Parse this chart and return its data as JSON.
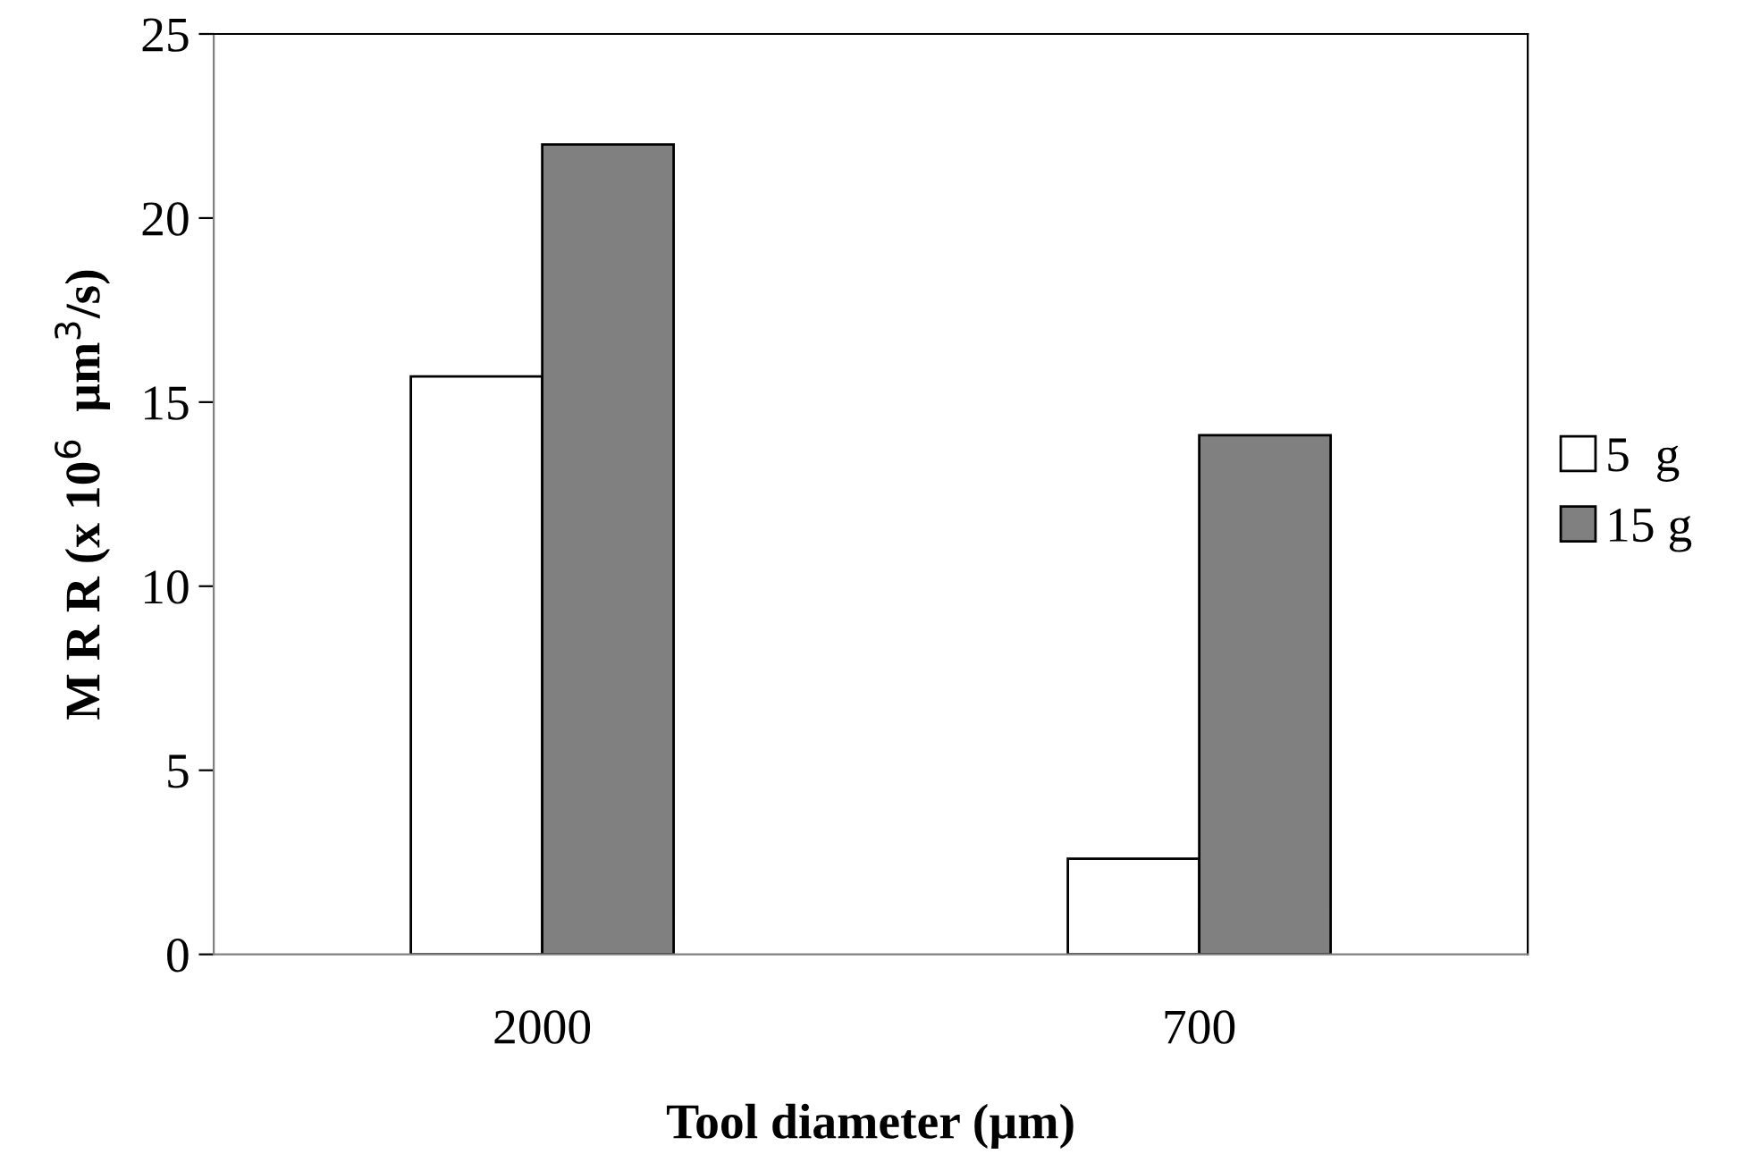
{
  "chart_data": {
    "type": "bar",
    "xlabel": "Tool diameter (µm)",
    "ylabel": "M R R (x 10$^{6}$  µm$^{3}$/s)",
    "categories": [
      "2000",
      "700"
    ],
    "series": [
      {
        "name": "5  g",
        "color": "#ffffff",
        "values": [
          15.7,
          2.6
        ]
      },
      {
        "name": "15 g",
        "color": "#808080",
        "values": [
          22.0,
          14.1
        ]
      }
    ],
    "ylim": [
      0,
      25
    ],
    "yticks": [
      0,
      5,
      10,
      15,
      20,
      25
    ],
    "grid": false,
    "legend": "right"
  }
}
